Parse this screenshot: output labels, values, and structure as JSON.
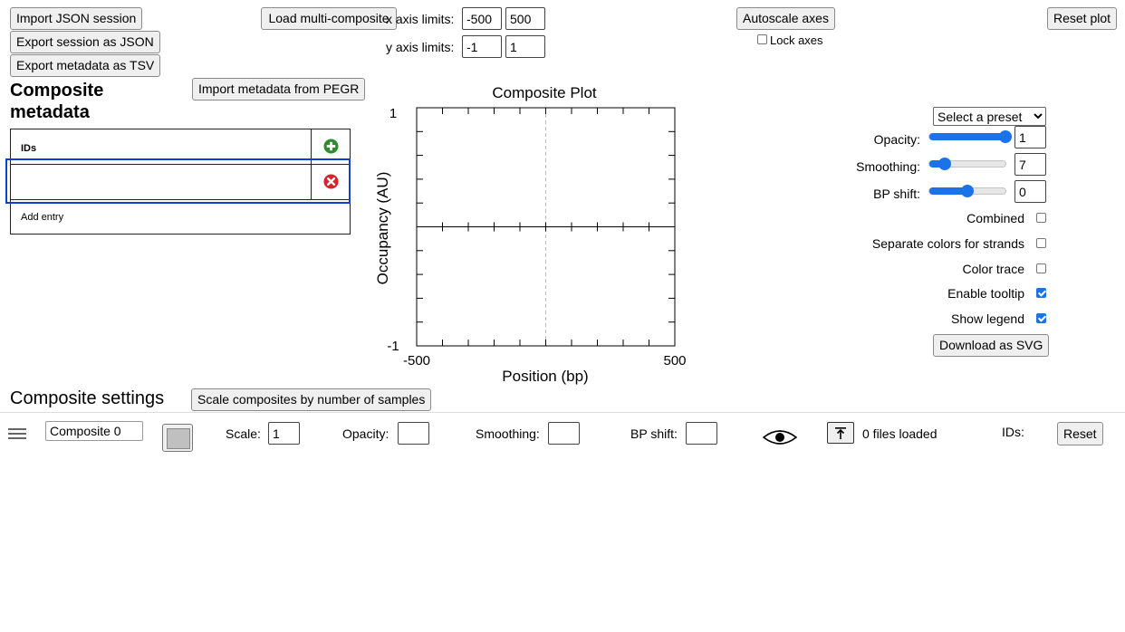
{
  "top_buttons": {
    "import_json": "Import JSON session",
    "export_json": "Export session as JSON",
    "export_tsv": "Export metadata as TSV",
    "load_multi": "Load multi-composite",
    "autoscale": "Autoscale axes",
    "reset_plot": "Reset plot"
  },
  "axis_limits": {
    "x_label": "x axis limits:",
    "x_min": "-500",
    "x_max": "500",
    "y_label": "y axis limits:",
    "y_min": "-1",
    "y_max": "1",
    "lock_label": "Lock axes"
  },
  "metadata": {
    "title": "Composite metadata",
    "import_pegr": "Import metadata from PEGR",
    "column_header": "IDs",
    "row_value": "",
    "add_entry": "Add entry"
  },
  "chart_data": {
    "type": "line",
    "title": "Composite Plot",
    "xlabel": "Position (bp)",
    "ylabel": "Occupancy (AU)",
    "xlim": [
      -500,
      500
    ],
    "ylim": [
      -1,
      1
    ],
    "x_tick_labels": [
      "-500",
      "500"
    ],
    "y_tick_labels": [
      "1",
      "-1"
    ],
    "reference_line_x": 0,
    "series": []
  },
  "plot_controls": {
    "preset": "Select a preset",
    "opacity_label": "Opacity:",
    "opacity_value": "1",
    "opacity_level": 1.0,
    "smoothing_label": "Smoothing:",
    "smoothing_value": "7",
    "smoothing_level": 0.2,
    "bpshift_label": "BP shift:",
    "bpshift_value": "0",
    "bpshift_level": 0.5,
    "combined_label": "Combined",
    "combined": false,
    "separate_label": "Separate colors for strands",
    "separate": false,
    "color_trace_label": "Color trace",
    "color_trace": false,
    "tooltip_label": "Enable tooltip",
    "tooltip": true,
    "legend_label": "Show legend",
    "legend": true,
    "download_svg": "Download as SVG"
  },
  "composite_settings": {
    "title": "Composite settings",
    "scale_button": "Scale composites by number of samples",
    "name": "Composite 0",
    "swatch_color": "#c0c0c0",
    "scale_label": "Scale:",
    "scale_value": "1",
    "opacity_label": "Opacity:",
    "opacity_value": "",
    "smoothing_label": "Smoothing:",
    "smoothing_value": "",
    "bpshift_label": "BP shift:",
    "bpshift_value": "",
    "files_loaded": "0 files loaded",
    "ids_label": "IDs:",
    "reset": "Reset"
  },
  "colors": {
    "accent": "#1a73e8",
    "add_icon": "#2e8b2e",
    "remove_icon": "#d9222a",
    "selection_outline": "#1040d0"
  }
}
